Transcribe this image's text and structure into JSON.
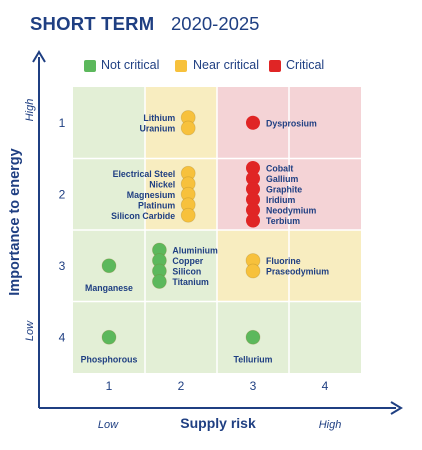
{
  "title": {
    "main": "SHORT TERM",
    "years": "2020-2025"
  },
  "legend": [
    {
      "label": "Not critical",
      "color": "#5cb85c"
    },
    {
      "label": "Near critical",
      "color": "#f7c13c"
    },
    {
      "label": "Critical",
      "color": "#e02525"
    }
  ],
  "axes": {
    "ylabel": "Importance to energy",
    "xlabel": "Supply risk",
    "x_low": "Low",
    "x_high": "High",
    "y_low": "Low",
    "y_high": "High"
  },
  "colors": {
    "axis": "#1f3f82",
    "zone_green": "#e3efd6",
    "zone_yellow": "#f8edc0",
    "zone_red": "#f4d3d6",
    "dot_green": "#5cb85c",
    "dot_yellow": "#f7c13c",
    "dot_red": "#e02525"
  },
  "chart_data": {
    "type": "scatter",
    "title": "SHORT TERM 2020-2025",
    "xlabel": "Supply risk",
    "ylabel": "Importance to energy",
    "x_ticks": [
      "1",
      "2",
      "3",
      "4"
    ],
    "y_ticks": [
      "1",
      "2",
      "3",
      "4"
    ],
    "xlim": [
      0.5,
      4.5
    ],
    "ylim": [
      0.5,
      4.5
    ],
    "y_inverted": true,
    "zones": [
      {
        "x": [
          0.5,
          1.5
        ],
        "y": [
          0.5,
          2.5
        ],
        "status": "Not critical"
      },
      {
        "x": [
          0.5,
          1.5
        ],
        "y": [
          2.5,
          4.5
        ],
        "status": "Not critical"
      },
      {
        "x": [
          1.5,
          2.5
        ],
        "y": [
          0.5,
          2.5
        ],
        "status": "Near critical"
      },
      {
        "x": [
          1.5,
          2.5
        ],
        "y": [
          2.5,
          4.5
        ],
        "status": "Not critical"
      },
      {
        "x": [
          2.5,
          4.5
        ],
        "y": [
          0.5,
          2.5
        ],
        "status": "Critical"
      },
      {
        "x": [
          2.5,
          4.5
        ],
        "y": [
          2.5,
          3.5
        ],
        "status": "Near critical"
      },
      {
        "x": [
          2.5,
          4.5
        ],
        "y": [
          3.5,
          4.5
        ],
        "status": "Not critical"
      }
    ],
    "points": [
      {
        "name": "Lithium",
        "x": 2.1,
        "y": 1,
        "status": "Near critical"
      },
      {
        "name": "Uranium",
        "x": 2.1,
        "y": 1,
        "status": "Near critical"
      },
      {
        "name": "Dysprosium",
        "x": 3,
        "y": 1,
        "status": "Critical"
      },
      {
        "name": "Electrical Steel",
        "x": 2.1,
        "y": 2,
        "status": "Near critical"
      },
      {
        "name": "Nickel",
        "x": 2.1,
        "y": 2,
        "status": "Near critical"
      },
      {
        "name": "Magnesium",
        "x": 2.1,
        "y": 2,
        "status": "Near critical"
      },
      {
        "name": "Platinum",
        "x": 2.1,
        "y": 2,
        "status": "Near critical"
      },
      {
        "name": "Silicon Carbide",
        "x": 2.1,
        "y": 2,
        "status": "Near critical"
      },
      {
        "name": "Cobalt",
        "x": 3,
        "y": 2,
        "status": "Critical"
      },
      {
        "name": "Gallium",
        "x": 3,
        "y": 2,
        "status": "Critical"
      },
      {
        "name": "Graphite",
        "x": 3,
        "y": 2,
        "status": "Critical"
      },
      {
        "name": "Iridium",
        "x": 3,
        "y": 2,
        "status": "Critical"
      },
      {
        "name": "Neodymium",
        "x": 3,
        "y": 2,
        "status": "Critical"
      },
      {
        "name": "Terbium",
        "x": 3,
        "y": 2,
        "status": "Critical"
      },
      {
        "name": "Manganese",
        "x": 1,
        "y": 3,
        "status": "Not critical"
      },
      {
        "name": "Aluminium",
        "x": 1.7,
        "y": 3,
        "status": "Not critical"
      },
      {
        "name": "Copper",
        "x": 1.7,
        "y": 3,
        "status": "Not critical"
      },
      {
        "name": "Silicon",
        "x": 1.7,
        "y": 3,
        "status": "Not critical"
      },
      {
        "name": "Titanium",
        "x": 1.7,
        "y": 3,
        "status": "Not critical"
      },
      {
        "name": "Fluorine",
        "x": 3,
        "y": 3,
        "status": "Near critical"
      },
      {
        "name": "Praseodymium",
        "x": 3,
        "y": 3,
        "status": "Near critical"
      },
      {
        "name": "Phosphorous",
        "x": 1,
        "y": 4,
        "status": "Not critical"
      },
      {
        "name": "Tellurium",
        "x": 3,
        "y": 4,
        "status": "Not critical"
      }
    ]
  }
}
